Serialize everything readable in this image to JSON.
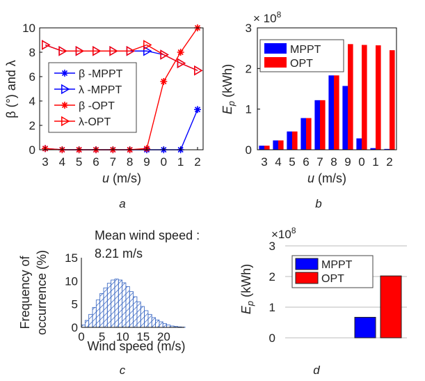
{
  "chart_data": [
    {
      "panel": "a",
      "type": "line",
      "xlabel": "u (m/s)",
      "ylabel": "β (°) and λ",
      "categories": [
        "3",
        "4",
        "5",
        "6",
        "7",
        "8",
        "9",
        "0",
        "1",
        "2"
      ],
      "x": [
        3,
        4,
        5,
        6,
        7,
        8,
        9,
        10,
        11,
        12
      ],
      "ylim": [
        0,
        10
      ],
      "yticks": [
        "0",
        "2",
        "4",
        "6",
        "8",
        "10"
      ],
      "legend_position": "center-left",
      "series": [
        {
          "name": "β -MPPT",
          "color": "#0000ff",
          "marker": "star",
          "values": [
            0.1,
            0,
            0,
            0,
            0,
            0,
            0,
            0,
            0,
            3.3
          ]
        },
        {
          "name": "λ -MPPT",
          "color": "#0000ff",
          "marker": "triangle-right",
          "values": [
            8.6,
            8.1,
            8.1,
            8.1,
            8.1,
            8.1,
            8.1,
            7.8,
            7.1,
            6.5
          ]
        },
        {
          "name": "β -OPT",
          "color": "#ff0000",
          "marker": "star",
          "values": [
            0.1,
            0,
            0,
            0,
            0,
            0,
            0.1,
            5.6,
            8.0,
            10.0
          ]
        },
        {
          "name": "λ-OPT",
          "color": "#ff0000",
          "marker": "triangle-right",
          "values": [
            8.6,
            8.1,
            8.1,
            8.1,
            8.1,
            8.1,
            8.6,
            7.8,
            7.1,
            6.5
          ]
        }
      ]
    },
    {
      "panel": "b",
      "type": "bar",
      "xlabel": "u (m/s)",
      "ylabel_main": "E",
      "ylabel_sub": "p",
      "ylabel_unit": " (kWh)",
      "exponent_text": "× 10",
      "exponent_power": "8",
      "categories": [
        "3",
        "4",
        "5",
        "6",
        "7",
        "8",
        "9",
        "0",
        "1",
        "2"
      ],
      "ylim": [
        0,
        3
      ],
      "yticks": [
        "0",
        "1",
        "2",
        "3"
      ],
      "legend_position": "top-left",
      "series": [
        {
          "name": "MPPT",
          "color": "#0000ff",
          "values": [
            0.1,
            0.23,
            0.45,
            0.78,
            1.22,
            1.83,
            1.57,
            0.28,
            0.04,
            0.02
          ]
        },
        {
          "name": "OPT",
          "color": "#ff0000",
          "values": [
            0.1,
            0.23,
            0.45,
            0.78,
            1.22,
            1.83,
            2.6,
            2.58,
            2.57,
            2.45
          ]
        }
      ]
    },
    {
      "panel": "c",
      "type": "histogram",
      "xlabel": "Wind speed (m/s)",
      "ylabel_line1": "Frequency of",
      "ylabel_line2": "occurrence (%)",
      "annotation_line1": "Mean wind speed :",
      "annotation_line2": "8.21 m/s",
      "xlim": [
        0,
        25
      ],
      "ylim": [
        0,
        15
      ],
      "xticks": [
        "0",
        "5",
        "10",
        "15",
        "20"
      ],
      "yticks": [
        "0",
        "5",
        "10",
        "15"
      ],
      "color": "#3060c0",
      "values": [
        0.5,
        1.5,
        2.8,
        4.3,
        5.9,
        7.3,
        8.5,
        9.5,
        10.2,
        10.4,
        10.2,
        9.6,
        8.8,
        7.7,
        6.6,
        5.5,
        4.5,
        3.6,
        2.8,
        2.1,
        1.6,
        1.2,
        0.8,
        0.5,
        0.3,
        0.2,
        0.1,
        0.05
      ]
    },
    {
      "panel": "d",
      "type": "bar",
      "ylabel_main": "E",
      "ylabel_sub": "p",
      "ylabel_unit": " (kWh)",
      "exponent_text": "×10",
      "exponent_power": "8",
      "ylim": [
        0,
        3
      ],
      "yticks": [
        "0",
        "1",
        "2",
        "3"
      ],
      "grid": true,
      "legend_position": "top-left",
      "series": [
        {
          "name": "MPPT",
          "color": "#0000ff",
          "values": [
            0.67
          ]
        },
        {
          "name": "OPT",
          "color": "#ff0000",
          "values": [
            2.02
          ]
        }
      ]
    }
  ],
  "captions": [
    "a",
    "b",
    "c",
    "d"
  ]
}
